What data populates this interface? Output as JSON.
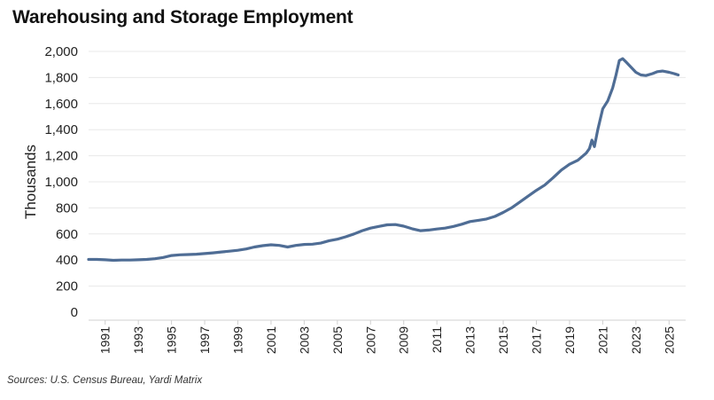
{
  "chart_data": {
    "type": "line",
    "title": "Warehousing and Storage Employment",
    "xlabel": "",
    "ylabel": "Thousands",
    "ylim": [
      0,
      2000
    ],
    "yticks": [
      0,
      200,
      400,
      600,
      800,
      "1,000",
      "1,200",
      "1,400",
      "1,600",
      "1,800",
      "2,000"
    ],
    "yticks_values": [
      0,
      200,
      400,
      600,
      800,
      1000,
      1200,
      1400,
      1600,
      1800,
      2000
    ],
    "xlim": [
      1990,
      2026
    ],
    "xticks": [
      "1991",
      "1993",
      "1995",
      "1997",
      "1999",
      "2001",
      "2003",
      "2005",
      "2007",
      "2009",
      "2011",
      "2013",
      "2015",
      "2017",
      "2019",
      "2021",
      "2023",
      "2025"
    ],
    "series": [
      {
        "name": "Warehousing and Storage Employment",
        "color": "#4f6d95",
        "x": [
          1990.0,
          1990.5,
          1991.0,
          1991.5,
          1992.0,
          1992.5,
          1993.0,
          1993.5,
          1994.0,
          1994.5,
          1995.0,
          1995.5,
          1996.0,
          1996.5,
          1997.0,
          1997.5,
          1998.0,
          1998.5,
          1999.0,
          1999.5,
          2000.0,
          2000.5,
          2001.0,
          2001.5,
          2002.0,
          2002.5,
          2003.0,
          2003.5,
          2004.0,
          2004.5,
          2005.0,
          2005.5,
          2006.0,
          2006.5,
          2007.0,
          2007.5,
          2008.0,
          2008.5,
          2009.0,
          2009.5,
          2010.0,
          2010.5,
          2011.0,
          2011.5,
          2012.0,
          2012.5,
          2013.0,
          2013.5,
          2014.0,
          2014.5,
          2015.0,
          2015.5,
          2016.0,
          2016.5,
          2017.0,
          2017.5,
          2018.0,
          2018.5,
          2019.0,
          2019.5,
          2020.0,
          2020.2,
          2020.35,
          2020.5,
          2020.7,
          2021.0,
          2021.3,
          2021.6,
          2021.8,
          2022.0,
          2022.2,
          2022.4,
          2022.7,
          2023.0,
          2023.3,
          2023.6,
          2024.0,
          2024.3,
          2024.6,
          2025.0,
          2025.3,
          2025.55
        ],
        "values": [
          405,
          405,
          402,
          398,
          400,
          400,
          402,
          405,
          410,
          420,
          435,
          440,
          442,
          445,
          450,
          455,
          462,
          468,
          475,
          485,
          500,
          510,
          517,
          512,
          500,
          512,
          520,
          522,
          530,
          548,
          560,
          578,
          600,
          625,
          645,
          658,
          670,
          672,
          660,
          640,
          625,
          630,
          638,
          645,
          658,
          675,
          695,
          705,
          715,
          735,
          765,
          800,
          845,
          890,
          935,
          975,
          1030,
          1090,
          1135,
          1165,
          1220,
          1255,
          1320,
          1270,
          1400,
          1560,
          1620,
          1720,
          1820,
          1930,
          1945,
          1920,
          1880,
          1840,
          1820,
          1815,
          1830,
          1845,
          1850,
          1840,
          1830,
          1820
        ]
      }
    ],
    "source": "Sources: U.S. Census Bureau, Yardi Matrix"
  }
}
